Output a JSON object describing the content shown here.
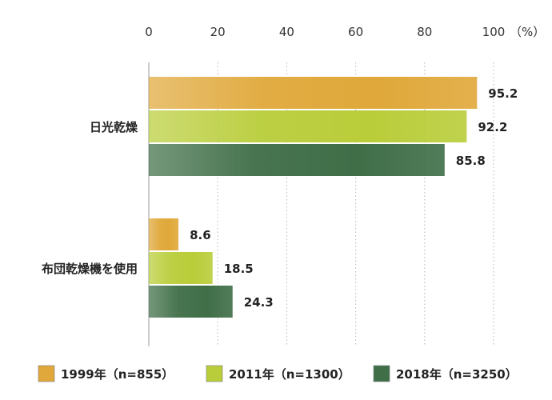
{
  "chart_data": {
    "type": "bar",
    "orientation": "horizontal",
    "unit": "（%）",
    "xlim": [
      0,
      100
    ],
    "xticks": [
      "0",
      "20",
      "40",
      "60",
      "80",
      "100"
    ],
    "grid": true,
    "legend_position": "bottom",
    "categories": [
      "日光乾燥",
      "布団乾燥機を使用"
    ],
    "series": [
      {
        "name": "1999年（n=855）",
        "color": "#e0a83a",
        "values": [
          95.2,
          8.6
        ],
        "labels": [
          "95.2",
          "8.6"
        ]
      },
      {
        "name": "2011年（n=1300）",
        "color": "#b9cd3a",
        "values": [
          92.2,
          18.5
        ],
        "labels": [
          "92.2",
          "18.5"
        ]
      },
      {
        "name": "2018年（n=3250）",
        "color": "#3f6e47",
        "values": [
          85.8,
          24.3
        ],
        "labels": [
          "85.8",
          "24.3"
        ]
      }
    ]
  }
}
